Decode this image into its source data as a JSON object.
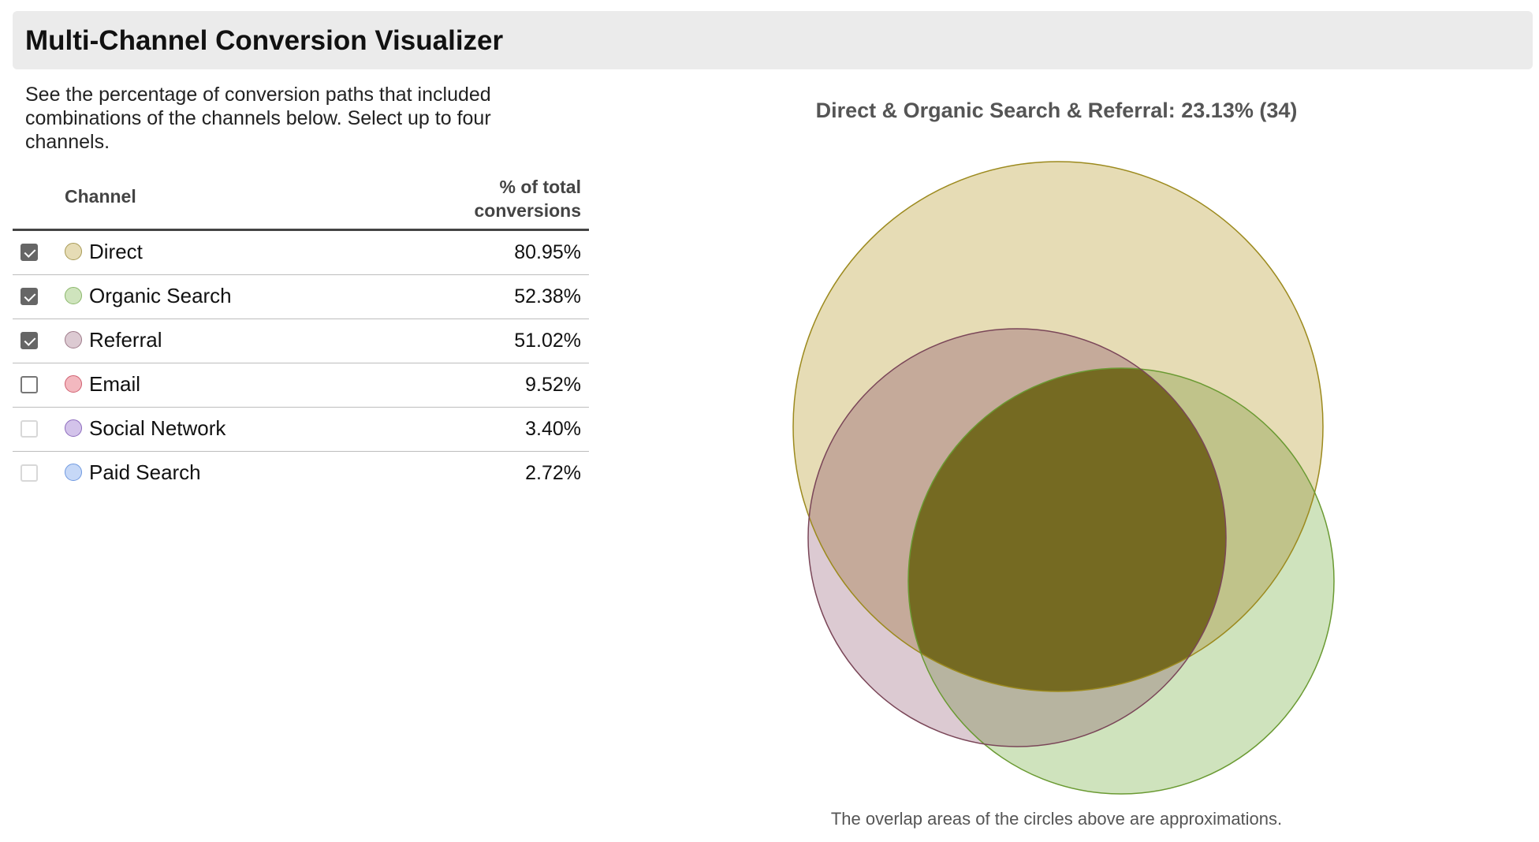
{
  "header": {
    "title": "Multi-Channel Conversion Visualizer"
  },
  "description": "See the percentage of conversion paths that included combinations of the channels below. Select up to four channels.",
  "table": {
    "col_channel": "Channel",
    "col_pct_line1": "% of total",
    "col_pct_line2": "conversions",
    "rows": [
      {
        "name": "Direct",
        "pct": "80.95%",
        "checked": true,
        "fill": "#e6dcb5",
        "stroke": "#a89a55"
      },
      {
        "name": "Organic Search",
        "pct": "52.38%",
        "checked": true,
        "fill": "#cfe4bd",
        "stroke": "#8cb86c"
      },
      {
        "name": "Referral",
        "pct": "51.02%",
        "checked": true,
        "fill": "#dccad2",
        "stroke": "#9e7a89"
      },
      {
        "name": "Email",
        "pct": "9.52%",
        "checked": false,
        "fill": "#f3b8bf",
        "stroke": "#d05f70"
      },
      {
        "name": "Social Network",
        "pct": "3.40%",
        "checked": false,
        "fill": "#d3c3ea",
        "stroke": "#8d6bbd"
      },
      {
        "name": "Paid Search",
        "pct": "2.72%",
        "checked": false,
        "fill": "#c6d8f7",
        "stroke": "#6f99e0"
      }
    ]
  },
  "venn": {
    "title": "Direct & Organic Search & Referral: 23.13% (34)",
    "footnote": "The overlap areas of the circles above are approximations.",
    "colors": {
      "direct_fill": "#e6dcb5",
      "direct_stroke": "#9c8a1e",
      "organic_fill": "#cfe3bd",
      "organic_stroke": "#6a9a32",
      "referral_fill": "#dccad2",
      "referral_stroke": "#7a4658",
      "d_r": "#c5aa9a",
      "d_o": "#c0c38a",
      "o_r": "#b7b4a0",
      "all": "#756a22"
    }
  }
}
